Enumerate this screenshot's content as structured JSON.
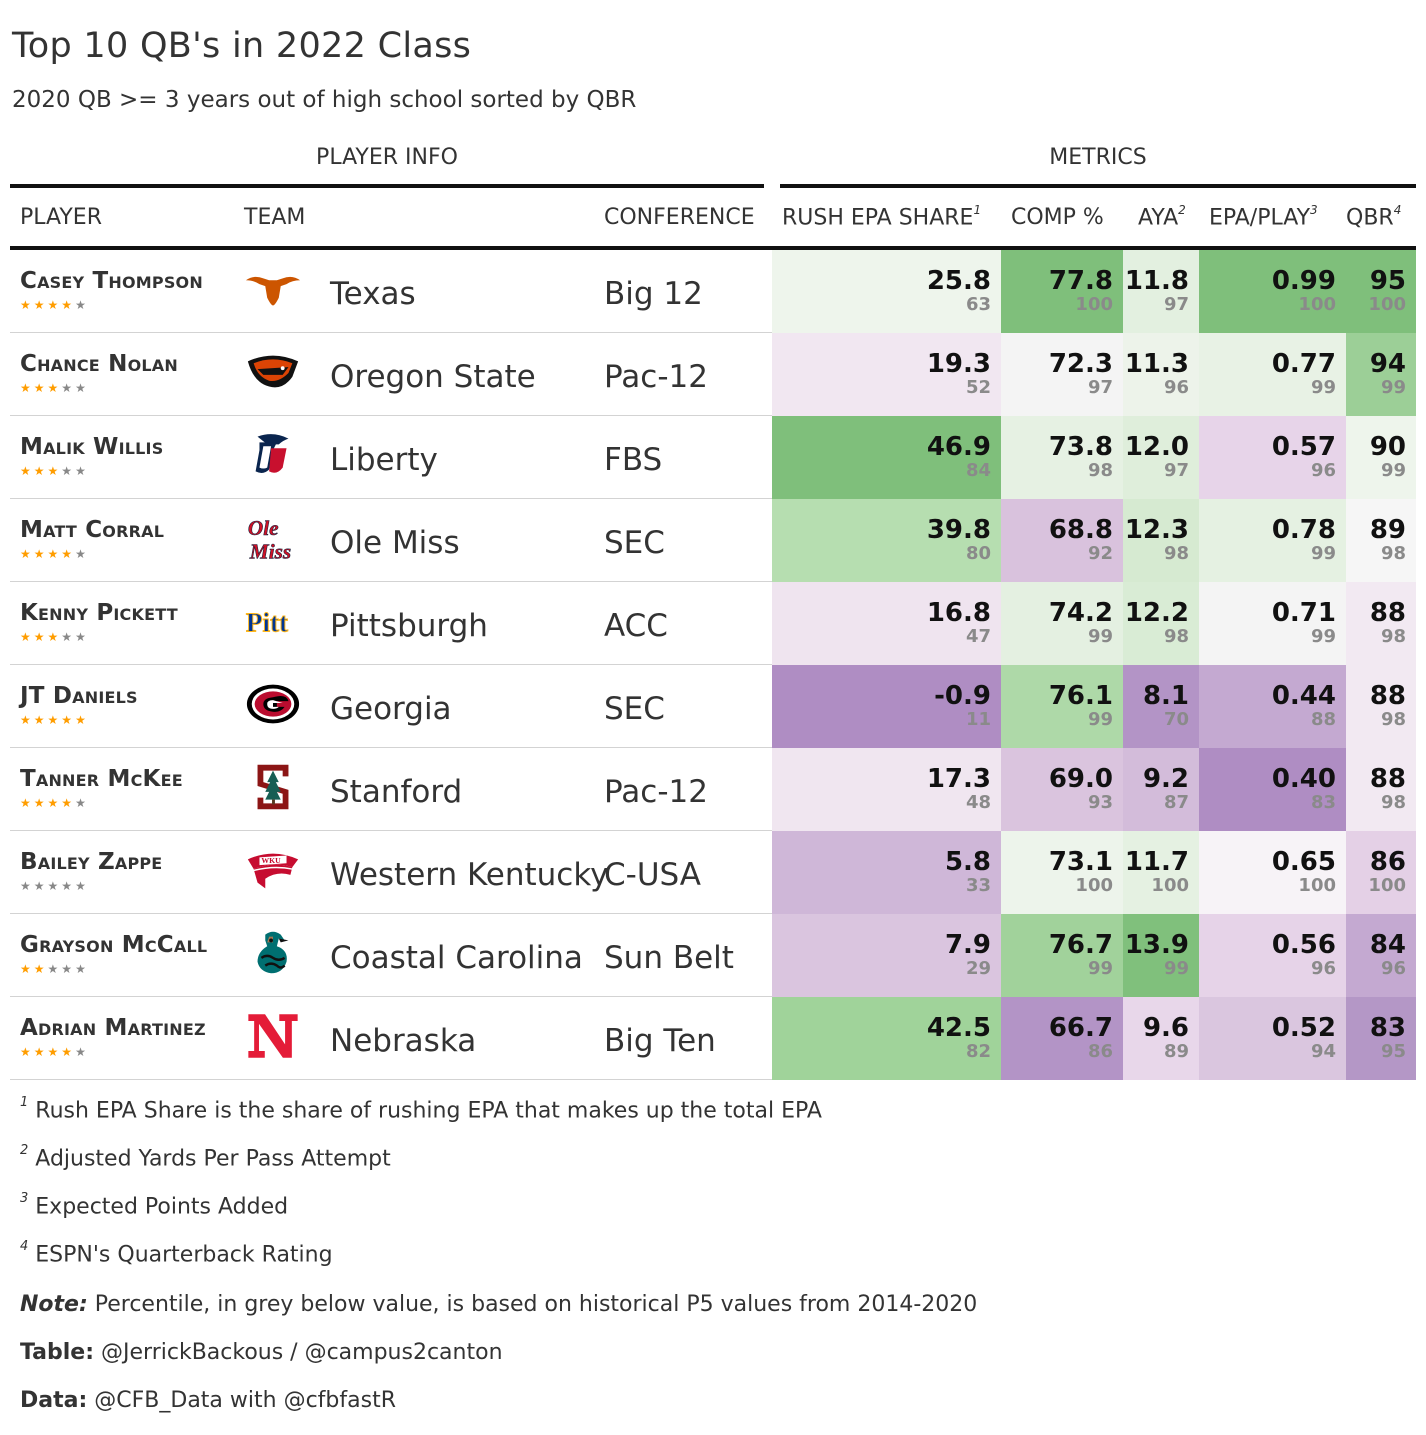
{
  "title": "Top 10 QB's in 2022 Class",
  "subtitle": "2020 QB >= 3 years out of high school sorted by QBR",
  "spanners": {
    "player_info": "PLAYER INFO",
    "metrics": "METRICS"
  },
  "columns": {
    "player": "PLAYER",
    "team": "TEAM",
    "conference": "CONFERENCE",
    "rush_epa_share": "RUSH EPA SHARE",
    "rush_epa_share_note": "1",
    "comp_pct": "COMP %",
    "aya": "AYA",
    "aya_note": "2",
    "epa_play": "EPA/PLAY",
    "epa_play_note": "3",
    "qbr": "QBR",
    "qbr_note": "4"
  },
  "chart_data": {
    "type": "table",
    "title": "Top 10 QB's in 2022 Class",
    "color_scale": {
      "low": "#af8dc3",
      "mid": "#f7f7f7",
      "high": "#7fbf7b"
    },
    "rows": [
      {
        "player": "Casey Thompson",
        "stars": 4,
        "team": "Texas",
        "logo": "texas-longhorn-logo",
        "conference": "Big 12",
        "rush_epa_share": "25.8",
        "rush_epa_share_pct": "63",
        "comp_pct": "77.8",
        "comp_pct_pct": "100",
        "aya": "11.8",
        "aya_pct": "97",
        "epa_play": "0.99",
        "epa_play_pct": "100",
        "qbr": "95",
        "qbr_pct": "100",
        "colors": [
          "#eef5ec",
          "#7fbf7b",
          "#e3f0e0",
          "#7fbf7b",
          "#7fbf7b"
        ]
      },
      {
        "player": "Chance Nolan",
        "stars": 3,
        "team": "Oregon State",
        "logo": "oregon-state-beaver-logo",
        "conference": "Pac-12",
        "rush_epa_share": "19.3",
        "rush_epa_share_pct": "52",
        "comp_pct": "72.3",
        "comp_pct_pct": "97",
        "aya": "11.3",
        "aya_pct": "96",
        "epa_play": "0.77",
        "epa_play_pct": "99",
        "qbr": "94",
        "qbr_pct": "99",
        "colors": [
          "#f1e7f1",
          "#f4f4f4",
          "#edf3ea",
          "#e8f2e5",
          "#9ccf97"
        ]
      },
      {
        "player": "Malik Willis",
        "stars": 3,
        "team": "Liberty",
        "logo": "liberty-flames-logo",
        "conference": "FBS",
        "rush_epa_share": "46.9",
        "rush_epa_share_pct": "84",
        "comp_pct": "73.8",
        "comp_pct_pct": "98",
        "aya": "12.0",
        "aya_pct": "97",
        "epa_play": "0.57",
        "epa_play_pct": "96",
        "qbr": "90",
        "qbr_pct": "99",
        "colors": [
          "#7fbf7b",
          "#e6f1e3",
          "#dfeedb",
          "#e7d4e9",
          "#eef5ec"
        ]
      },
      {
        "player": "Matt Corral",
        "stars": 4,
        "team": "Ole Miss",
        "logo": "ole-miss-script-logo",
        "conference": "SEC",
        "rush_epa_share": "39.8",
        "rush_epa_share_pct": "80",
        "comp_pct": "68.8",
        "comp_pct_pct": "92",
        "aya": "12.3",
        "aya_pct": "98",
        "epa_play": "0.78",
        "epa_play_pct": "99",
        "qbr": "89",
        "qbr_pct": "98",
        "colors": [
          "#b6deb0",
          "#d9c2dd",
          "#d6ead1",
          "#e5f1e2",
          "#f6f6f6"
        ]
      },
      {
        "player": "Kenny Pickett",
        "stars": 3,
        "team": "Pittsburgh",
        "logo": "pitt-script-logo",
        "conference": "ACC",
        "rush_epa_share": "16.8",
        "rush_epa_share_pct": "47",
        "comp_pct": "74.2",
        "comp_pct_pct": "99",
        "aya": "12.2",
        "aya_pct": "98",
        "epa_play": "0.71",
        "epa_play_pct": "99",
        "qbr": "88",
        "qbr_pct": "98",
        "colors": [
          "#efe4ef",
          "#e4f0e1",
          "#d9ecd5",
          "#f4f4f4",
          "#f2e9f2"
        ]
      },
      {
        "player": "JT Daniels",
        "stars": 5,
        "team": "Georgia",
        "logo": "georgia-g-logo",
        "conference": "SEC",
        "rush_epa_share": "-0.9",
        "rush_epa_share_pct": "11",
        "comp_pct": "76.1",
        "comp_pct_pct": "99",
        "aya": "8.1",
        "aya_pct": "70",
        "epa_play": "0.44",
        "epa_play_pct": "88",
        "qbr": "88",
        "qbr_pct": "98",
        "colors": [
          "#af8dc3",
          "#aed9a8",
          "#b394c6",
          "#c4a9d1",
          "#f2e9f2"
        ]
      },
      {
        "player": "Tanner McKee",
        "stars": 4,
        "team": "Stanford",
        "logo": "stanford-s-tree-logo",
        "conference": "Pac-12",
        "rush_epa_share": "17.3",
        "rush_epa_share_pct": "48",
        "comp_pct": "69.0",
        "comp_pct_pct": "93",
        "aya": "9.2",
        "aya_pct": "87",
        "epa_play": "0.40",
        "epa_play_pct": "83",
        "qbr": "88",
        "qbr_pct": "98",
        "colors": [
          "#f0e6f0",
          "#dac4de",
          "#d3bcda",
          "#af8dc3",
          "#f2e9f2"
        ]
      },
      {
        "player": "Bailey Zappe",
        "stars": 0,
        "team": "Western Kentucky",
        "logo": "wku-towel-logo",
        "conference": "C-USA",
        "rush_epa_share": "5.8",
        "rush_epa_share_pct": "33",
        "comp_pct": "73.1",
        "comp_pct_pct": "100",
        "aya": "11.7",
        "aya_pct": "100",
        "epa_play": "0.65",
        "epa_play_pct": "100",
        "qbr": "86",
        "qbr_pct": "100",
        "colors": [
          "#cfb7d8",
          "#edf4eb",
          "#e5f1e2",
          "#f7f3f7",
          "#e4d0e6"
        ]
      },
      {
        "player": "Grayson McCall",
        "stars": 2,
        "team": "Coastal Carolina",
        "logo": "coastal-carolina-chanticleer-logo",
        "conference": "Sun Belt",
        "rush_epa_share": "7.9",
        "rush_epa_share_pct": "29",
        "comp_pct": "76.7",
        "comp_pct_pct": "99",
        "aya": "13.9",
        "aya_pct": "99",
        "epa_play": "0.56",
        "epa_play_pct": "96",
        "qbr": "84",
        "qbr_pct": "96",
        "colors": [
          "#dac5df",
          "#a1d29b",
          "#80c07c",
          "#e6d3e8",
          "#c4a9d1"
        ]
      },
      {
        "player": "Adrian Martinez",
        "stars": 4,
        "team": "Nebraska",
        "logo": "nebraska-n-logo",
        "conference": "Big Ten",
        "rush_epa_share": "42.5",
        "rush_epa_share_pct": "82",
        "comp_pct": "66.7",
        "comp_pct_pct": "86",
        "aya": "9.6",
        "aya_pct": "89",
        "epa_play": "0.52",
        "epa_play_pct": "94",
        "qbr": "83",
        "qbr_pct": "95",
        "colors": [
          "#a0d39a",
          "#b394c6",
          "#e8d7ea",
          "#dac6df",
          "#b497c6"
        ]
      }
    ]
  },
  "footnotes": [
    {
      "mark": "1",
      "text": "Rush EPA Share is the share of rushing EPA that makes up the total EPA"
    },
    {
      "mark": "2",
      "text": "Adjusted Yards Per Pass Attempt"
    },
    {
      "mark": "3",
      "text": "Expected Points Added"
    },
    {
      "mark": "4",
      "text": "ESPN's Quarterback Rating"
    }
  ],
  "source_notes": {
    "note_label": "Note:",
    "note_text": " Percentile, in grey below value, is based on historical P5 values from 2014-2020",
    "table_label": "Table:",
    "table_text": " @JerrickBackous / @campus2canton",
    "data_label": "Data:",
    "data_text": " @CFB_Data with @cfbfastR"
  }
}
